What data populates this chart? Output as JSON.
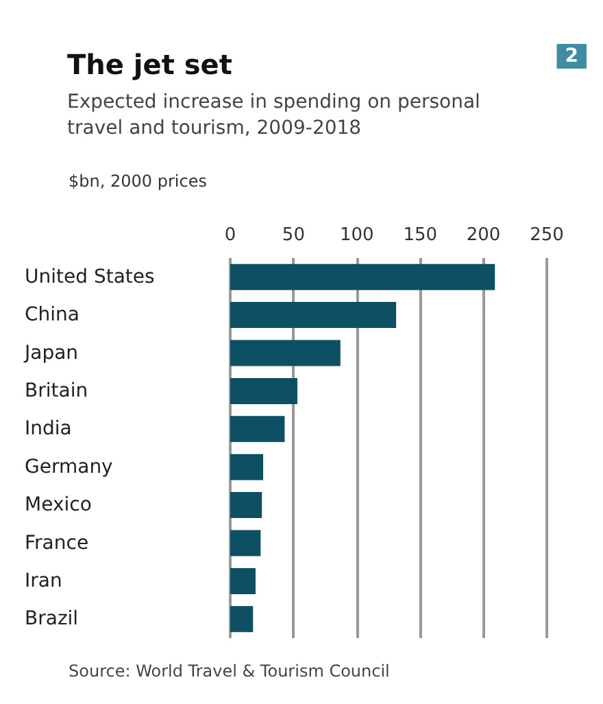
{
  "chart_data": {
    "type": "bar",
    "orientation": "horizontal",
    "title": "The jet set",
    "subtitle": "Expected increase in spending on personal\ntravel and tourism, 2009-2018",
    "xlabel": "$bn, 2000 prices",
    "categories": [
      "United States",
      "China",
      "Japan",
      "Britain",
      "India",
      "Germany",
      "Mexico",
      "France",
      "Iran",
      "Brazil"
    ],
    "values": [
      209,
      131,
      87,
      53,
      43,
      26,
      25,
      24,
      20,
      18
    ],
    "color": "#0d4f63",
    "xlim": [
      0,
      250
    ],
    "xticks": [
      0,
      50,
      100,
      150,
      200,
      250
    ],
    "grid": "x",
    "annotations": [
      "2",
      "Source: World Travel & Tourism Council"
    ]
  }
}
